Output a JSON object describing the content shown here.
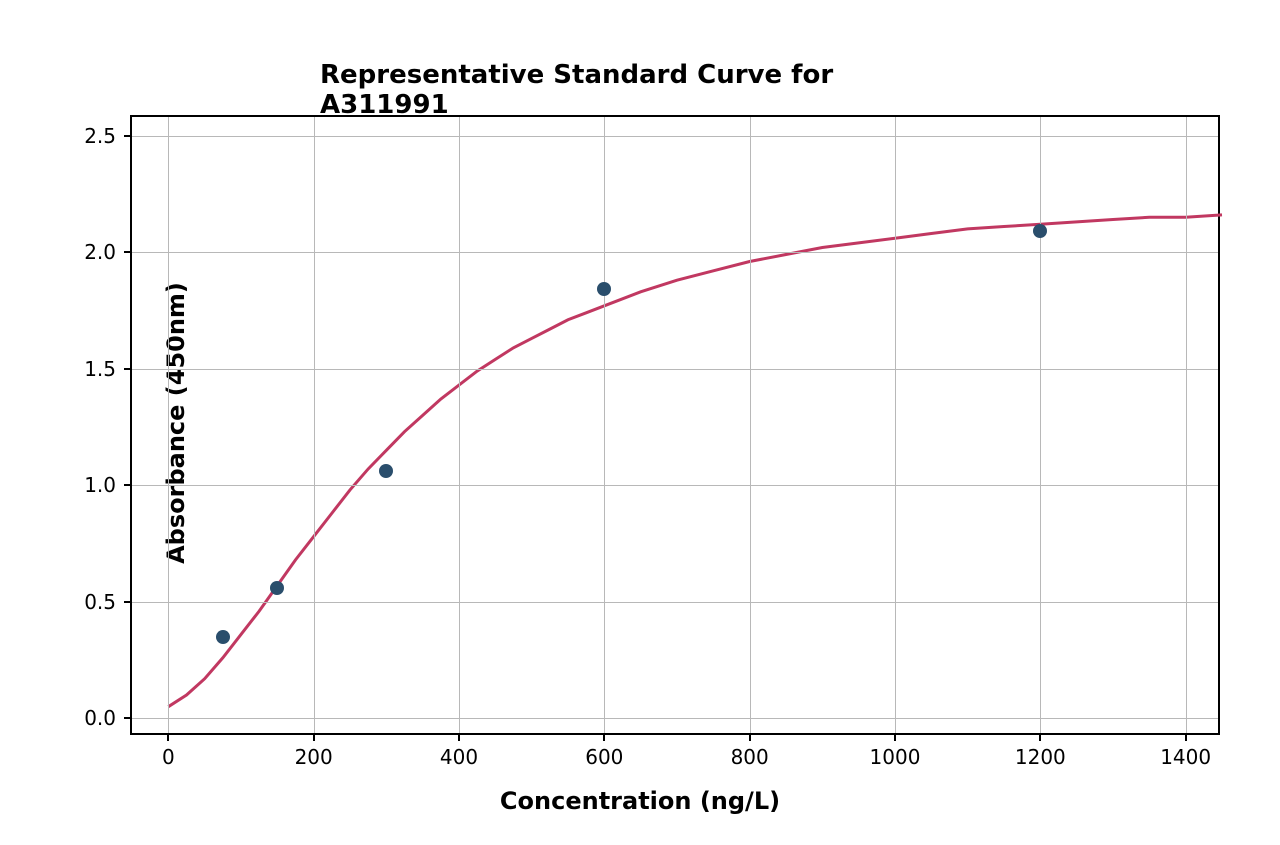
{
  "chart": {
    "type": "scatter-with-curve",
    "title": "Representative Standard Curve for A311991",
    "title_fontsize": 26,
    "title_color": "#000000",
    "xlabel": "Concentration (ng/L)",
    "ylabel": "Absorbance (450nm)",
    "label_fontsize": 24,
    "label_color": "#000000",
    "background_color": "#ffffff",
    "plot_background": "#ffffff",
    "border_color": "#000000",
    "border_width": 2,
    "grid_color": "#b8b8b8",
    "grid_width": 1,
    "xlim": [
      -50,
      1450
    ],
    "ylim": [
      -0.08,
      2.58
    ],
    "xticks": [
      0,
      200,
      400,
      600,
      800,
      1000,
      1200,
      1400
    ],
    "yticks": [
      0.0,
      0.5,
      1.0,
      1.5,
      2.0,
      2.5
    ],
    "ytick_labels": [
      "0.0",
      "0.5",
      "1.0",
      "1.5",
      "2.0",
      "2.5"
    ],
    "tick_fontsize": 20,
    "tick_color": "#000000",
    "scatter": {
      "x": [
        75,
        150,
        300,
        600,
        1200
      ],
      "y": [
        0.35,
        0.56,
        1.06,
        1.84,
        2.09
      ],
      "marker_color": "#2a4e6c",
      "marker_size": 14
    },
    "curve": {
      "color": "#c13861",
      "width": 3,
      "points": [
        [
          0,
          0.05
        ],
        [
          25,
          0.1
        ],
        [
          50,
          0.17
        ],
        [
          75,
          0.26
        ],
        [
          100,
          0.36
        ],
        [
          125,
          0.46
        ],
        [
          150,
          0.57
        ],
        [
          175,
          0.68
        ],
        [
          200,
          0.78
        ],
        [
          225,
          0.88
        ],
        [
          250,
          0.98
        ],
        [
          275,
          1.07
        ],
        [
          300,
          1.15
        ],
        [
          325,
          1.23
        ],
        [
          350,
          1.3
        ],
        [
          375,
          1.37
        ],
        [
          400,
          1.43
        ],
        [
          425,
          1.49
        ],
        [
          450,
          1.54
        ],
        [
          475,
          1.59
        ],
        [
          500,
          1.63
        ],
        [
          525,
          1.67
        ],
        [
          550,
          1.71
        ],
        [
          575,
          1.74
        ],
        [
          600,
          1.77
        ],
        [
          650,
          1.83
        ],
        [
          700,
          1.88
        ],
        [
          750,
          1.92
        ],
        [
          800,
          1.96
        ],
        [
          850,
          1.99
        ],
        [
          900,
          2.02
        ],
        [
          950,
          2.04
        ],
        [
          1000,
          2.06
        ],
        [
          1050,
          2.08
        ],
        [
          1100,
          2.1
        ],
        [
          1150,
          2.11
        ],
        [
          1200,
          2.12
        ],
        [
          1250,
          2.13
        ],
        [
          1300,
          2.14
        ],
        [
          1350,
          2.15
        ],
        [
          1400,
          2.15
        ],
        [
          1450,
          2.16
        ]
      ]
    }
  }
}
